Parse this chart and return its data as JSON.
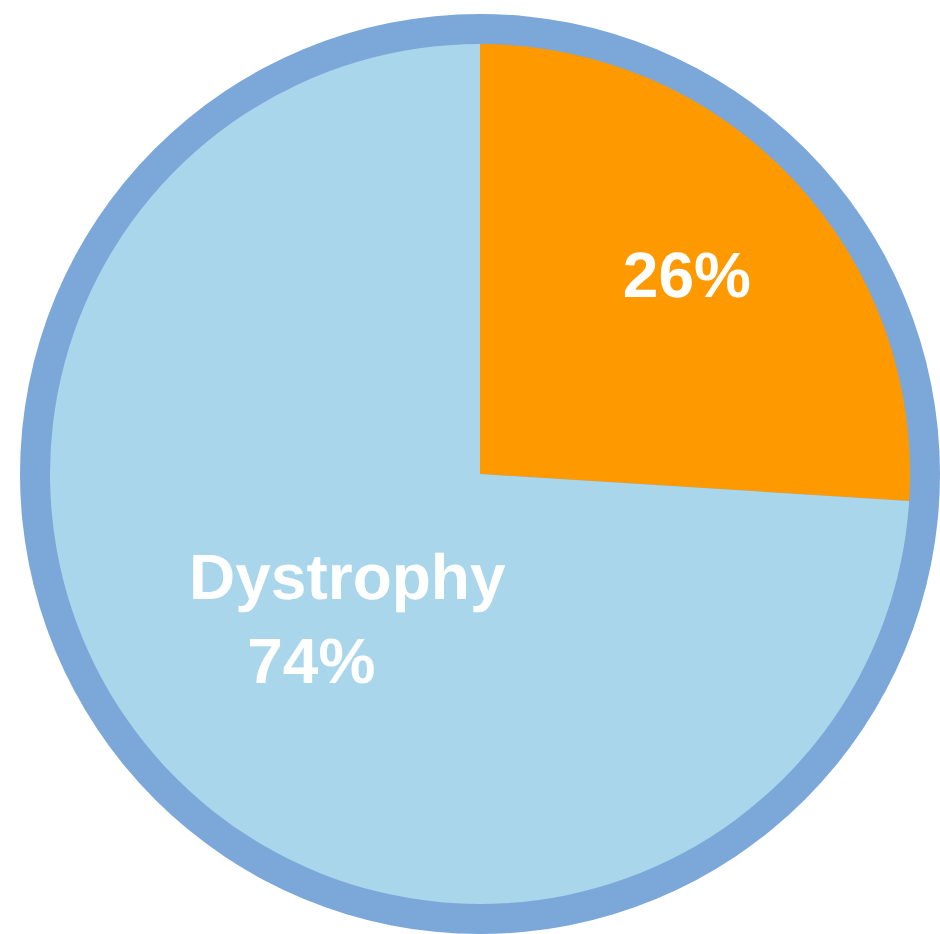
{
  "chart_data": {
    "type": "pie",
    "categories": [
      null,
      "Dystrophy"
    ],
    "values": [
      26,
      74
    ],
    "colors": [
      "#ff9900",
      "#a9d6ea"
    ],
    "value_labels": [
      "26%",
      "74%"
    ],
    "legend": false
  }
}
